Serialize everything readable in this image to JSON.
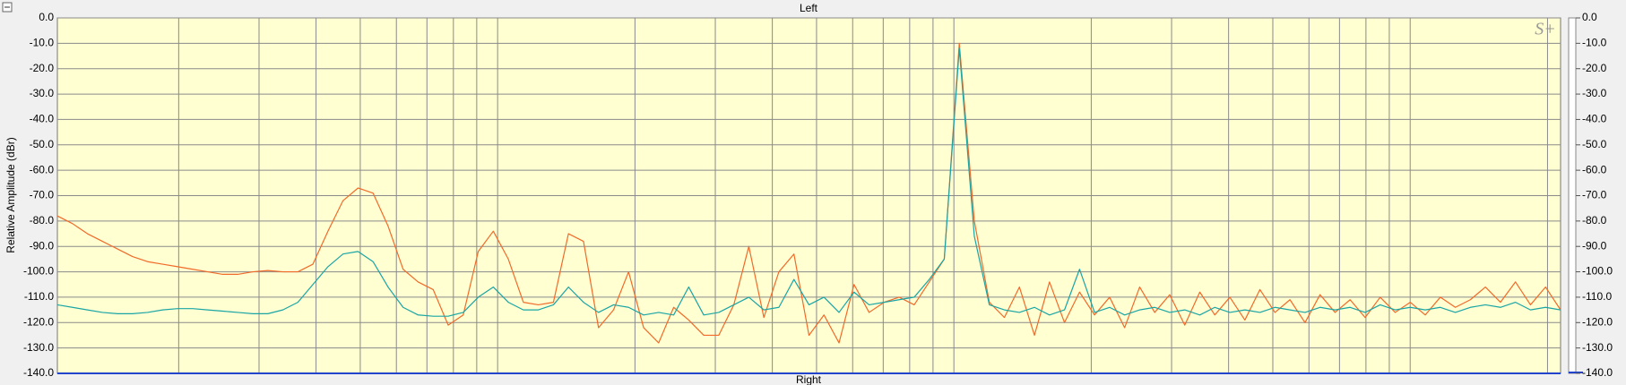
{
  "chart_data": {
    "type": "line",
    "title": "Left",
    "x_label": "Right",
    "y_label": "Relative Amplitude (dBr)",
    "logo": "S+",
    "ylim": [
      -140,
      0
    ],
    "yticks": [
      {
        "value": 0,
        "label": "0.0"
      },
      {
        "value": -10,
        "label": "-10.0"
      },
      {
        "value": -20,
        "label": "-20.0"
      },
      {
        "value": -30,
        "label": "-30.0"
      },
      {
        "value": -40,
        "label": "-40.0"
      },
      {
        "value": -50,
        "label": "-50.0"
      },
      {
        "value": -60,
        "label": "-60.0"
      },
      {
        "value": -70,
        "label": "-70.0"
      },
      {
        "value": -80,
        "label": "-80.0"
      },
      {
        "value": -90,
        "label": "-90.0"
      },
      {
        "value": -100,
        "label": "-100.0"
      },
      {
        "value": -110,
        "label": "-110.0"
      },
      {
        "value": -120,
        "label": "-120.0"
      },
      {
        "value": -130,
        "label": "-130.0"
      },
      {
        "value": -140,
        "label": "-140.0"
      }
    ],
    "y2lim": [
      -140,
      0
    ],
    "y2ticks": [
      {
        "value": 0,
        "label": "0.0"
      },
      {
        "value": -10,
        "label": "-10.0"
      },
      {
        "value": -20,
        "label": "-20.0"
      },
      {
        "value": -30,
        "label": "-30.0"
      },
      {
        "value": -40,
        "label": "-40.0"
      },
      {
        "value": -50,
        "label": "-50.0"
      },
      {
        "value": -60,
        "label": "-60.0"
      },
      {
        "value": -70,
        "label": "-70.0"
      },
      {
        "value": -80,
        "label": "-80.0"
      },
      {
        "value": -90,
        "label": "-90.0"
      },
      {
        "value": -100,
        "label": "-100.0"
      },
      {
        "value": -110,
        "label": "-110.0"
      },
      {
        "value": -120,
        "label": "-120.0"
      },
      {
        "value": -130,
        "label": "-130.0"
      },
      {
        "value": -140,
        "label": "-140.0"
      }
    ],
    "grid": true,
    "series": [
      {
        "color": "#f26a2a",
        "values": [
          -78,
          -81,
          -85,
          -88,
          -91,
          -94,
          -96,
          -97,
          -98,
          -99,
          -100,
          -101,
          -101,
          -100,
          -99.5,
          -100,
          -100,
          -97,
          -84,
          -72,
          -67,
          -69,
          -82,
          -99,
          -104,
          -107,
          -121,
          -117,
          -92,
          -84,
          -95,
          -112,
          -113,
          -112,
          -85,
          -88,
          -122,
          -115,
          -100,
          -122,
          -128,
          -114,
          -119,
          -125,
          -125,
          -113,
          -90,
          -118,
          -100,
          -93,
          -125,
          -117,
          -128,
          -105,
          -116,
          -112,
          -110,
          -113,
          -104,
          -95,
          -10,
          -80,
          -112,
          -118,
          -106,
          -125,
          -104,
          -120,
          -108,
          -117,
          -110,
          -122,
          -106,
          -116,
          -109,
          -121,
          -108,
          -117,
          -110,
          -119,
          -107,
          -116,
          -111,
          -120,
          -109,
          -116,
          -111,
          -118,
          -110,
          -116,
          -112,
          -117,
          -110,
          -114,
          -111,
          -106,
          -112,
          -104,
          -113,
          -106,
          -115
        ]
      },
      {
        "color": "#1aa5a5",
        "values": [
          -113,
          -114,
          -115,
          -116,
          -116.5,
          -116.5,
          -116,
          -115,
          -114.5,
          -114.5,
          -115,
          -115.5,
          -116,
          -116.5,
          -116.5,
          -115,
          -112,
          -105,
          -98,
          -93,
          -92,
          -96,
          -106,
          -114,
          -117,
          -117.5,
          -117.5,
          -116,
          -110,
          -106,
          -112,
          -115,
          -115,
          -113,
          -106,
          -112,
          -116,
          -113,
          -114,
          -117,
          -116,
          -117,
          -106,
          -117,
          -116,
          -113,
          -110,
          -115,
          -114,
          -103,
          -113,
          -110,
          -116,
          -108,
          -113,
          -112,
          -111,
          -110,
          -103,
          -95,
          -12,
          -86,
          -113,
          -115,
          -116,
          -114,
          -117,
          -115,
          -99,
          -116,
          -114,
          -117,
          -115,
          -114,
          -116,
          -115,
          -117,
          -114,
          -116,
          -115,
          -116,
          -114,
          -115,
          -116,
          -114,
          -115,
          -114,
          -116,
          -113,
          -115,
          -114,
          -115,
          -114,
          -116,
          -114,
          -113,
          -114,
          -112,
          -115,
          -114,
          -115
        ]
      }
    ]
  }
}
